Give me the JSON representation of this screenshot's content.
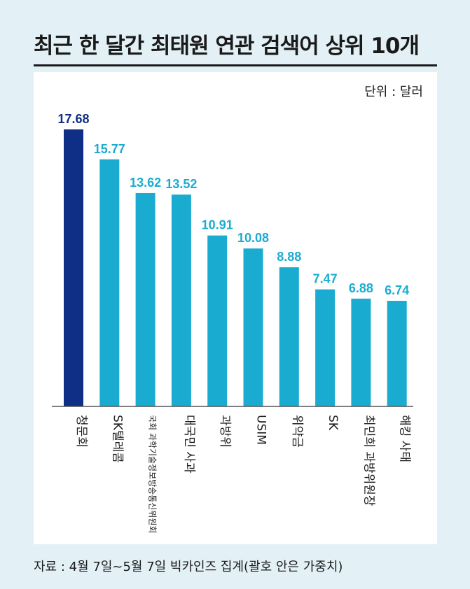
{
  "title": "최근 한 달간 최태원 연관 검색어 상위 10개",
  "unit_label": "단위 : 달러",
  "source": "자료 : 4월 7일~5월 7일 빅카인즈 집계(괄호 안은 가중치)",
  "colors": {
    "highlight": "#0f2f86",
    "bar": "#1aacd0",
    "value_highlight": "#0f2f86",
    "value": "#1aacd0"
  },
  "chart_data": {
    "type": "bar",
    "categories": [
      "청문회",
      "SK텔레콤",
      "국회 과학기술정보방송통신위원회",
      "대국민 사과",
      "과방위",
      "USIM",
      "위약금",
      "SK",
      "최민희 과방위원장",
      "해킹 사태"
    ],
    "values": [
      17.68,
      15.77,
      13.62,
      13.52,
      10.91,
      10.08,
      8.88,
      7.47,
      6.88,
      6.74
    ],
    "value_labels": [
      "17.68",
      "15.77",
      "13.62",
      "13.52",
      "10.91",
      "10.08",
      "8.88",
      "7.47",
      "6.88",
      "6.74"
    ],
    "highlight_index": 0,
    "ylim": [
      0,
      17.68
    ],
    "grid": false,
    "legend": "none",
    "xlabel": "",
    "ylabel": ""
  }
}
